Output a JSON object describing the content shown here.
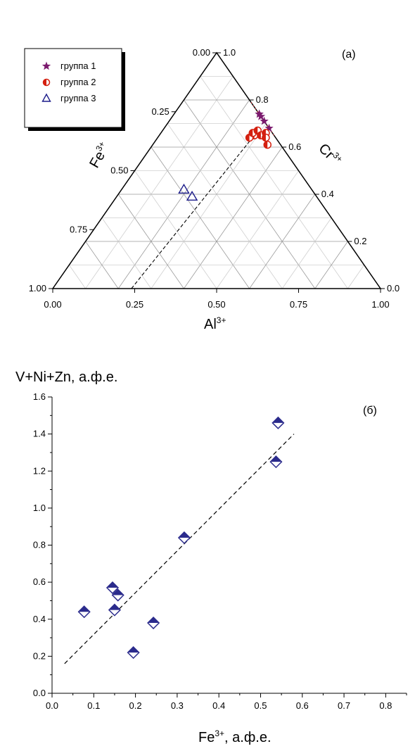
{
  "chart_data": [
    {
      "type": "ternary",
      "panel_label": "(a)",
      "axes": {
        "bottom": {
          "title": "Al",
          "title_sup": "3+",
          "ticks": [
            "0.00",
            "0.25",
            "0.50",
            "0.75",
            "1.00"
          ]
        },
        "left": {
          "title": "Fe",
          "title_sup": "3+",
          "ticks": [
            "0.00",
            "0.25",
            "0.50",
            "0.75",
            "1.00"
          ]
        },
        "right": {
          "title": "Cr",
          "title_sup": "3+",
          "ticks": [
            "1.0",
            "0.8",
            "0.6",
            "0.4",
            "0.2",
            "0.0"
          ]
        }
      },
      "grid": true,
      "legend": {
        "placement": "top-left",
        "entries": [
          {
            "label": "группа 1",
            "marker": "star-icon",
            "color": "#7b1a6e"
          },
          {
            "label": "группа 2",
            "marker": "half-filled-circle-icon",
            "color": "#d42010"
          },
          {
            "label": "группа 3",
            "marker": "open-triangle-icon",
            "color": "#1c1c8a"
          }
        ]
      },
      "series": [
        {
          "name": "группа 1",
          "points": [
            {
              "fe": 0.0,
              "al": 0.29,
              "cr": 0.71
            },
            {
              "fe": 0.0,
              "al": 0.26,
              "cr": 0.74
            },
            {
              "fe": 0.0,
              "al": 0.26,
              "cr": 0.74
            },
            {
              "fe": 0.0,
              "al": 0.27,
              "cr": 0.73
            },
            {
              "fe": 0.0,
              "al": 0.32,
              "cr": 0.68
            }
          ]
        },
        {
          "name": "группа 2",
          "points": [
            {
              "fe": 0.06,
              "al": 0.29,
              "cr": 0.65
            },
            {
              "fe": 0.08,
              "al": 0.28,
              "cr": 0.64
            },
            {
              "fe": 0.06,
              "al": 0.28,
              "cr": 0.66
            },
            {
              "fe": 0.04,
              "al": 0.29,
              "cr": 0.67
            },
            {
              "fe": 0.04,
              "al": 0.31,
              "cr": 0.65
            },
            {
              "fe": 0.02,
              "al": 0.32,
              "cr": 0.66
            },
            {
              "fe": 0.03,
              "al": 0.33,
              "cr": 0.64
            },
            {
              "fe": 0.04,
              "al": 0.35,
              "cr": 0.61
            }
          ]
        },
        {
          "name": "группа 3",
          "points": [
            {
              "fe": 0.39,
              "al": 0.19,
              "cr": 0.42
            },
            {
              "fe": 0.38,
              "al": 0.23,
              "cr": 0.39
            }
          ]
        }
      ],
      "trend_lines": [
        {
          "style": "black dashed",
          "points": [
            {
              "fe": 0.76,
              "al": 0.24,
              "cr": 0.0
            },
            {
              "fe": 0.06,
              "al": 0.29,
              "cr": 0.65
            }
          ]
        },
        {
          "style": "red dotted",
          "points": [
            {
              "fe": 0.0,
              "al": 0.35,
              "cr": 0.65
            },
            {
              "fe": 0.0,
              "al": 0.21,
              "cr": 0.79
            }
          ]
        }
      ]
    },
    {
      "type": "scatter",
      "panel_label": "(б)",
      "xlabel": "Fe",
      "xlabel_sup": "3+",
      "xlabel_suffix": ", а.ф.е.",
      "ylabel": "V+Ni+Zn, а.ф.е.",
      "xlim": [
        0.0,
        0.85
      ],
      "ylim": [
        0.0,
        1.6
      ],
      "x_ticks": [
        "0.0",
        "0.1",
        "0.2",
        "0.3",
        "0.4",
        "0.5",
        "0.6",
        "0.7",
        "0.8"
      ],
      "y_ticks": [
        "0.0",
        "0.2",
        "0.4",
        "0.6",
        "0.8",
        "1.0",
        "1.2",
        "1.4",
        "1.6"
      ],
      "grid": false,
      "marker": "half-filled-diamond-icon",
      "marker_color": "#2b2b8c",
      "points": [
        {
          "x": 0.077,
          "y": 0.44
        },
        {
          "x": 0.145,
          "y": 0.57
        },
        {
          "x": 0.158,
          "y": 0.53
        },
        {
          "x": 0.15,
          "y": 0.45
        },
        {
          "x": 0.195,
          "y": 0.22
        },
        {
          "x": 0.243,
          "y": 0.38
        },
        {
          "x": 0.317,
          "y": 0.84
        },
        {
          "x": 0.537,
          "y": 1.25
        },
        {
          "x": 0.542,
          "y": 1.46
        }
      ],
      "trend_line": {
        "style": "dashed",
        "x": [
          0.03,
          0.58
        ],
        "y": [
          0.16,
          1.4
        ]
      }
    }
  ]
}
